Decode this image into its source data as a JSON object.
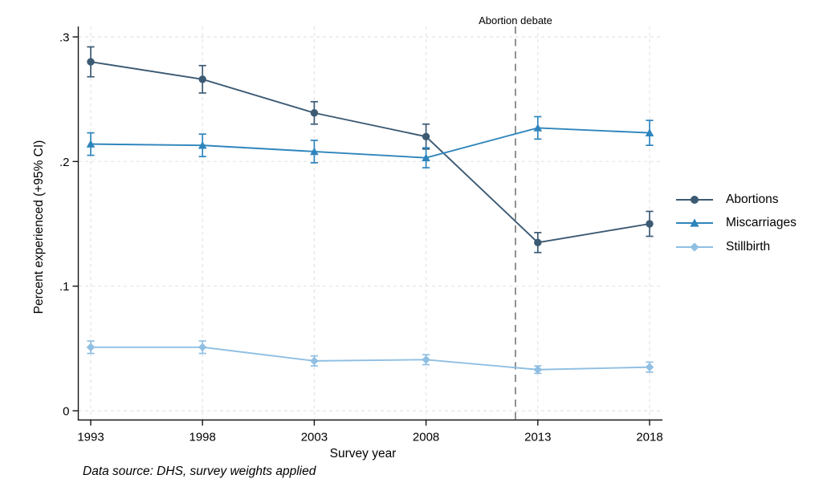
{
  "chart_data": {
    "type": "line",
    "title": "",
    "xlabel": "Survey year",
    "ylabel": "Percent experienced (+95% CI)",
    "note": "Data source: DHS, survey weights applied",
    "x": [
      1993,
      1998,
      2003,
      2008,
      2013,
      2018
    ],
    "xlim": [
      1993,
      2018
    ],
    "ylim": [
      0,
      0.3
    ],
    "yticks": [
      0,
      0.1,
      0.2,
      0.3
    ],
    "ytick_labels": [
      "0",
      ".1",
      ".2",
      ".3"
    ],
    "grid": "dashed, both axes, light gray",
    "legend_position": "right-outside",
    "annotation": {
      "label": "Abortion debate",
      "x_year": 2012,
      "line_style": "dashed",
      "line_color": "#7f7f7f"
    },
    "series": [
      {
        "name": "Abortions",
        "marker": "circle",
        "color": "#3c5a73",
        "values": [
          0.28,
          0.266,
          0.239,
          0.22,
          0.135,
          0.15
        ],
        "ci_half_width": [
          0.012,
          0.011,
          0.009,
          0.01,
          0.008,
          0.01
        ]
      },
      {
        "name": "Miscarriages",
        "marker": "triangle",
        "color": "#2e85bd",
        "values": [
          0.214,
          0.213,
          0.208,
          0.203,
          0.227,
          0.223
        ],
        "ci_half_width": [
          0.009,
          0.009,
          0.009,
          0.008,
          0.009,
          0.01
        ]
      },
      {
        "name": "Stillbirth",
        "marker": "diamond",
        "color": "#8fbfe3",
        "values": [
          0.051,
          0.051,
          0.04,
          0.041,
          0.033,
          0.035
        ],
        "ci_half_width": [
          0.005,
          0.005,
          0.004,
          0.004,
          0.003,
          0.004
        ]
      }
    ]
  }
}
